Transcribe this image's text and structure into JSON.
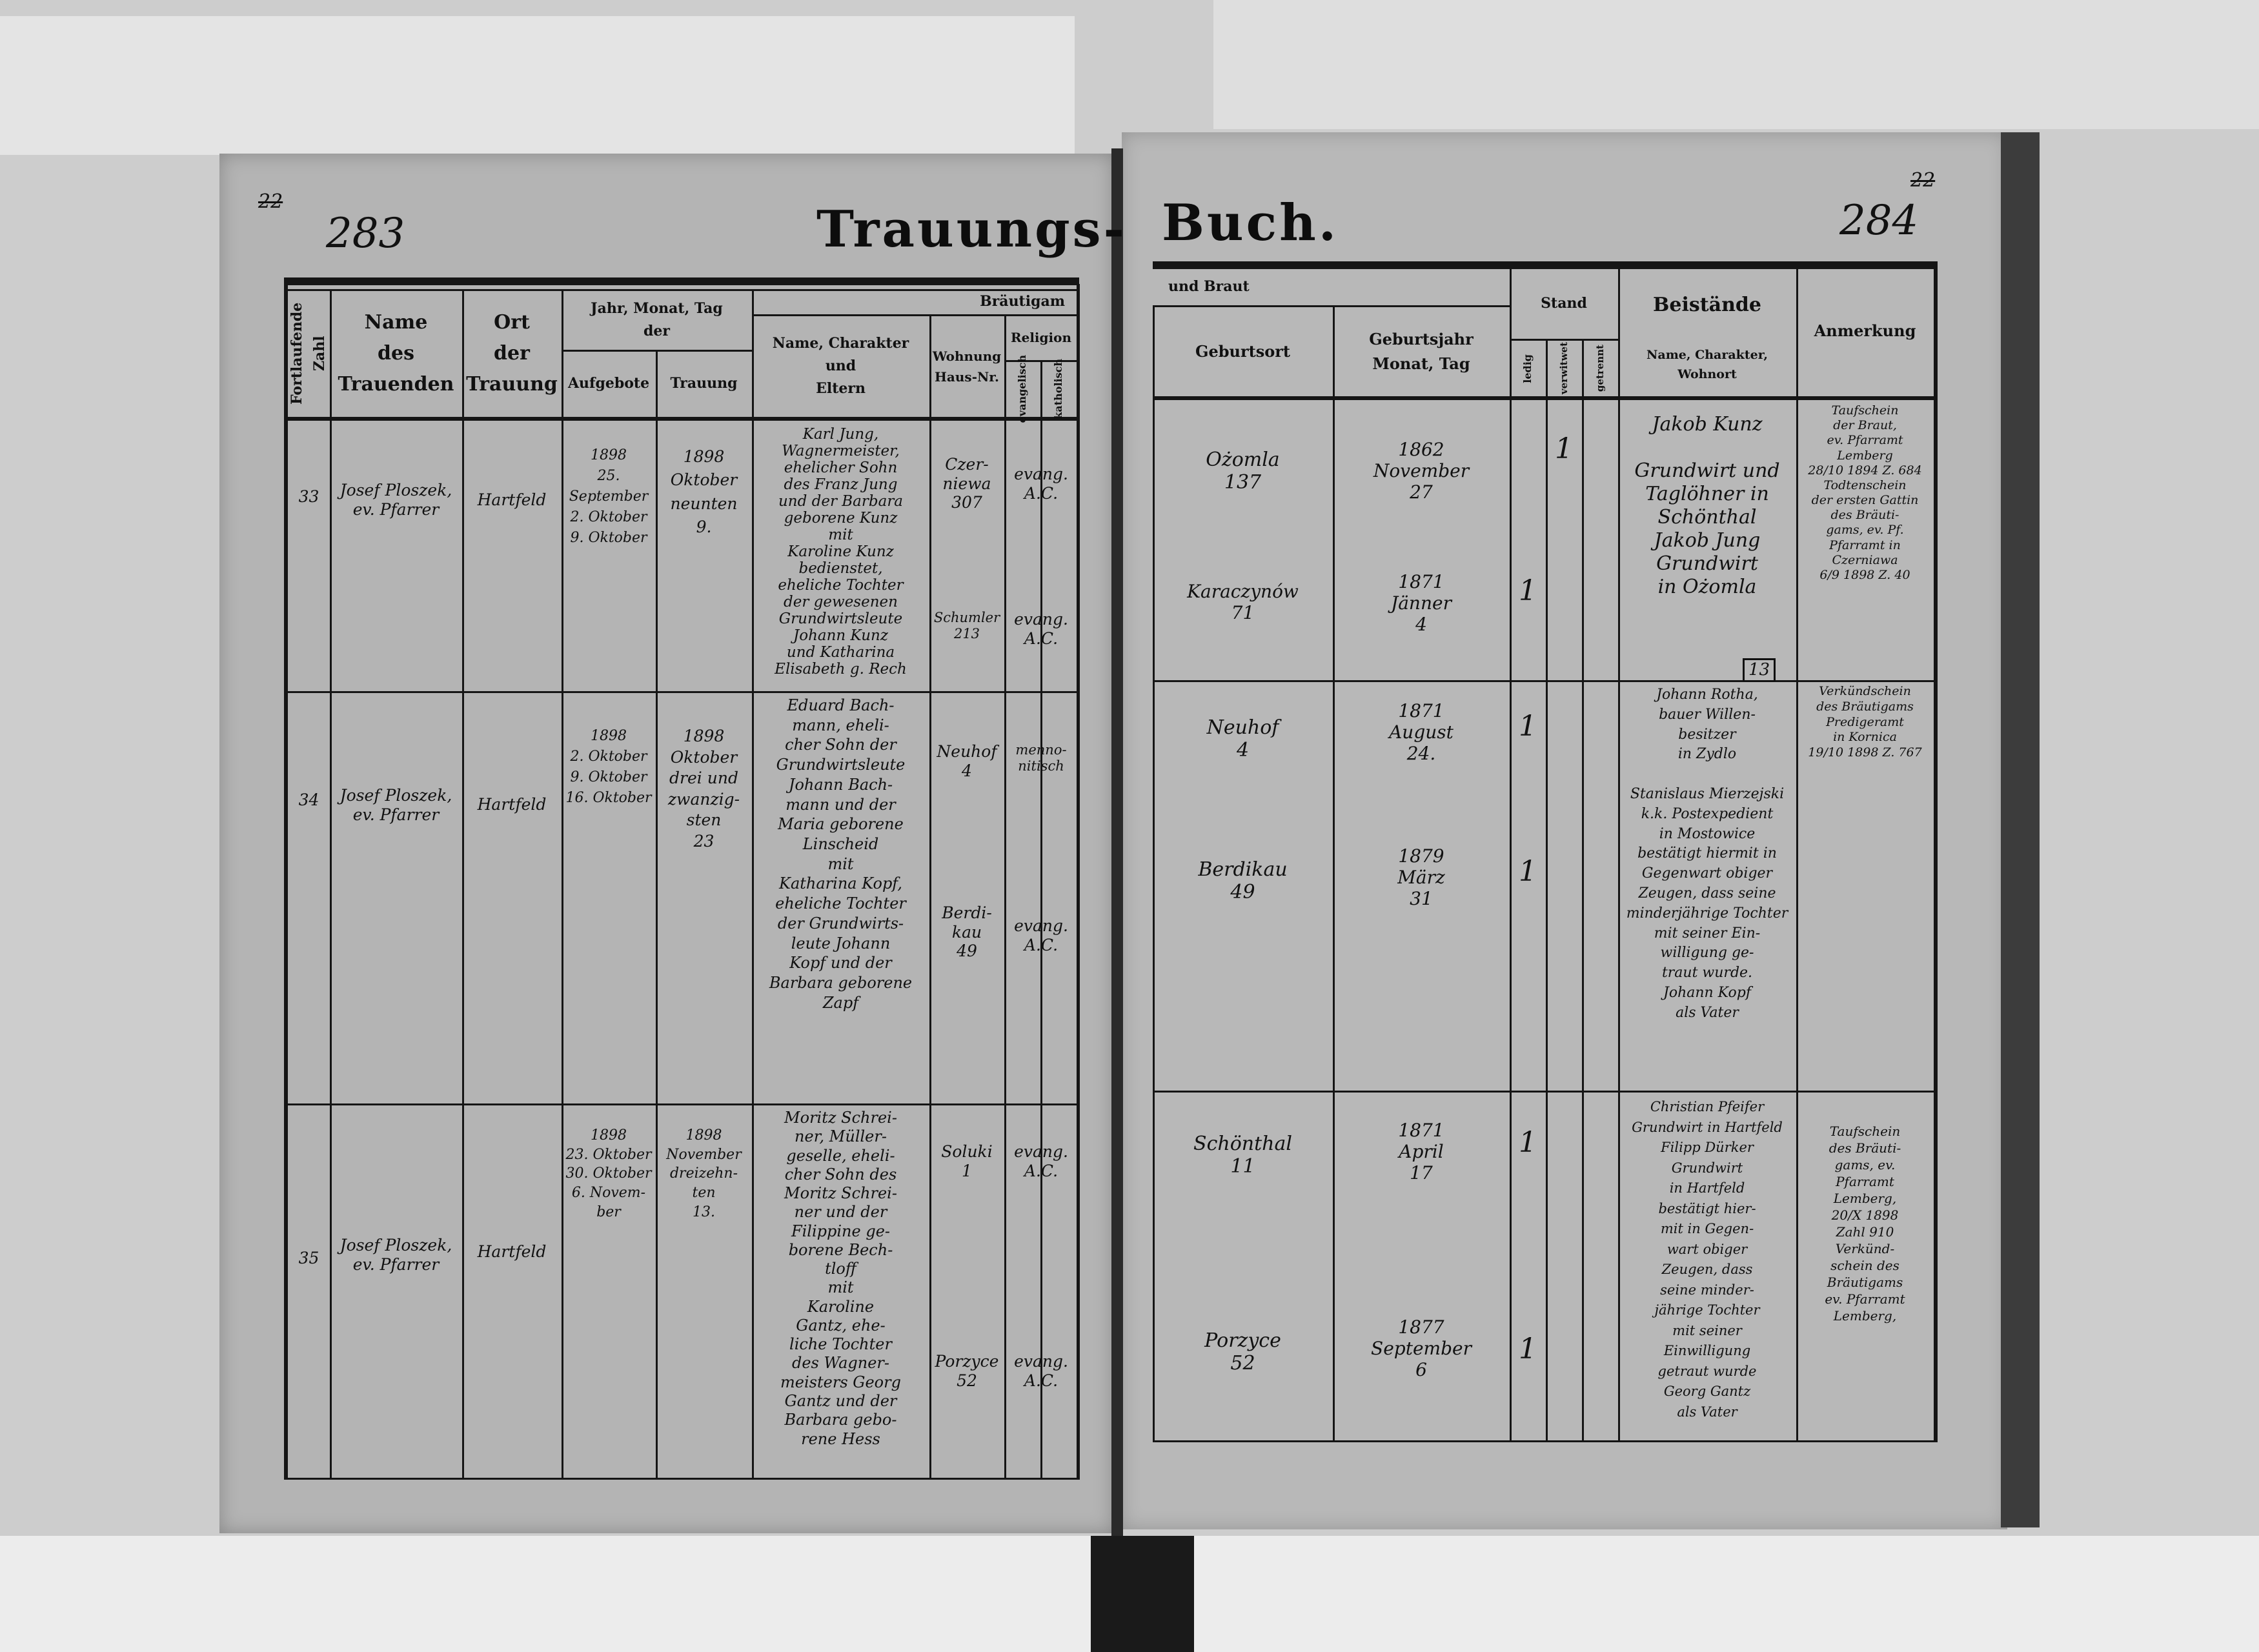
{
  "left_page": {
    "struck_number": "22",
    "page_number": "283",
    "title": "Trauungs-",
    "headers": {
      "serial": "Fortlaufende Zahl",
      "officiant": "Name\ndes\nTrauenden",
      "place": "Ort\nder\nTrauung",
      "date_group": "Jahr, Monat, Tag\nder",
      "banns": "Aufgebote",
      "wedding": "Trauung",
      "groom_group": "Bräutigam",
      "name": "Name, Charakter\nund\nEltern",
      "residence": "Wohnung\nHaus-Nr.",
      "religion": "Religion",
      "evangelical": "evangelisch",
      "catholic": "katholisch"
    }
  },
  "right_page": {
    "struck_number": "22",
    "page_number": "284",
    "title": "Buch.",
    "headers": {
      "bride_group": "und Braut",
      "birthplace": "Geburtsort",
      "birth_year": "Geburtsjahr\nMonat, Tag",
      "status": "Stand",
      "single": "ledig",
      "widowed": "verwitwet",
      "separated": "getrennt",
      "witnesses": "Beistände",
      "witnesses_sub": "Name, Charakter, Wohnort",
      "remarks": "Anmerkung"
    }
  },
  "entries": [
    {
      "number": "33",
      "officiant": "Josef Ploszek,\nev. Pfarrer",
      "place": "Hartfeld",
      "banns": "1898\n25. September\n2. Oktober\n9. Oktober",
      "wedding": "1898\nOktober\nneunten\n9.",
      "names": "Karl Jung,\nWagnermeister,\nehelicher Sohn\ndes Franz Jung\nund der Barbara\ngeborene Kunz\nmit\nKaroline Kunz\nbedienstet,\neheliche Tochter\nder gewesenen\nGrundwirtsleute\nJohann Kunz\nund Katharina\nElisabeth g. Rech",
      "groom_residence": "Czer-\nniewa\n307",
      "groom_religion": "evang.\nA.C.",
      "bride_residence": "Schumler\n213",
      "bride_religion": "evang.\nA.C.",
      "groom_birthplace": "Ożomla\n137",
      "groom_birth": "1862\nNovember\n27",
      "groom_status": "verwitwet",
      "groom_status_mark": "1",
      "bride_birthplace": "Karaczynów\n71",
      "bride_birth": "1871\nJänner\n4",
      "bride_status": "ledig",
      "bride_status_mark": "1",
      "witnesses": "Jakob Kunz\n\nGrundwirt und\nTaglöhner in\nSchönthal\nJakob Jung\nGrundwirt\nin Ożomla",
      "remarks": "Taufschein\nder Braut,\nev. Pfarramt\nLemberg\n28/10 1894 Z. 684\nTodtenschein\nder ersten Gattin\ndes Bräuti-\ngams, ev. Pf.\nPfarramt in\nCzerniawa\n6/9 1898 Z. 40"
    },
    {
      "number": "34",
      "officiant": "Josef Ploszek,\nev. Pfarrer",
      "place": "Hartfeld",
      "banns": "1898\n2. Oktober\n9. Oktober\n16. Oktober",
      "wedding": "1898\nOktober\ndrei und\nzwanzig-\nsten\n23",
      "names": "Eduard Bach-\nmann, eheli-\ncher Sohn der\nGrundwirtsleute\nJohann Bach-\nmann und der\nMaria geborene\nLinscheid\nmit\nKatharina Kopf,\neheliche Tochter\nder Grundwirts-\nleute Johann\nKopf und der\nBarbara geborene\nZapf",
      "groom_residence": "Neuhof\n4",
      "groom_religion": "menno-\nnitisch",
      "bride_residence": "Berdi-\nkau\n49",
      "bride_religion": "evang.\nA.C.",
      "groom_birthplace": "Neuhof\n4",
      "groom_birth": "1871\nAugust\n24.",
      "groom_status": "ledig",
      "groom_status_mark": "1",
      "bride_birthplace": "Berdikau\n49",
      "bride_birth": "1879\nMärz\n31",
      "bride_status": "ledig",
      "bride_status_mark": "1",
      "witness_tag": "13",
      "witnesses": "Johann Rotha,\nbauer Willen-\nbesitzer\nin Zydlo\n\nStanislaus Mierzejski\nk.k. Postexpedient\nin Mostowice\nbestätigt hiermit in\nGegenwart obiger\nZeugen, dass seine\nminderjährige Tochter\nmit seiner Ein-\nwilligung ge-\ntraut wurde.\nJohann Kopf\nals Vater",
      "remarks": "Verkündschein\ndes Bräutigams\nPredigeramt\nin Kornica\n19/10 1898 Z. 767"
    },
    {
      "number": "35",
      "officiant": "Josef Ploszek,\nev. Pfarrer",
      "place": "Hartfeld",
      "banns": "1898\n23. Oktober\n30. Oktober\n6. Novem-\nber",
      "wedding": "1898\nNovember\ndreizehn-\nten\n13.",
      "names": "Moritz Schrei-\nner, Müller-\ngeselle, eheli-\ncher Sohn des\nMoritz Schrei-\nner und der\nFilippine ge-\nborene Bech-\ntloff\nmit\nKaroline\nGantz, ehe-\nliche Tochter\ndes Wagner-\nmeisters Georg\nGantz und der\nBarbara gebo-\nrene Hess",
      "groom_residence": "Soluki\n1",
      "groom_religion": "evang.\nA.C.",
      "bride_residence": "Porzyce\n52",
      "bride_religion": "evang.\nA.C.",
      "groom_birthplace": "Schönthal\n11",
      "groom_birth": "1871\nApril\n17",
      "groom_status": "ledig",
      "groom_status_mark": "1",
      "bride_birthplace": "Porzyce\n52",
      "bride_birth": "1877\nSeptember\n6",
      "bride_status": "ledig",
      "bride_status_mark": "1",
      "witnesses": "Christian Pfeifer\nGrundwirt in Hartfeld\nFilipp Dürker\nGrundwirt\nin Hartfeld\nbestätigt hier-\nmit in Gegen-\nwart obiger\nZeugen, dass\nseine minder-\njährige Tochter\nmit seiner\nEinwilligung\ngetraut wurde\nGeorg Gantz\nals Vater",
      "remarks": "Taufschein\ndes Bräuti-\ngams, ev.\nPfarramt\nLemberg,\n20/X 1898\nZahl 910\nVerkünd-\nschein des\nBräutigams\nev. Pfarramt\nLemberg,"
    }
  ]
}
